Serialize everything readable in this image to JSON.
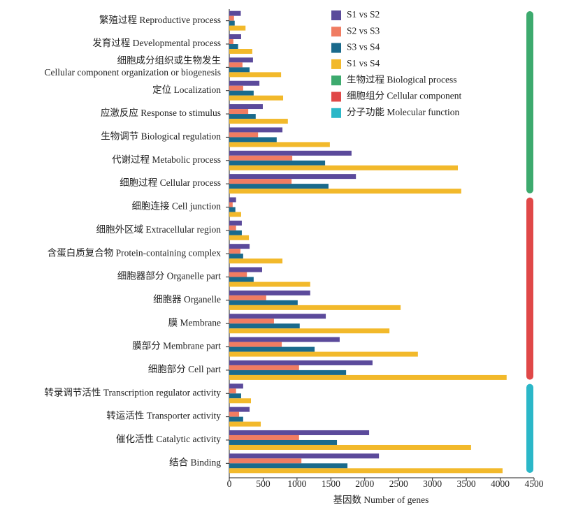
{
  "chart_data": {
    "type": "bar",
    "orientation": "horizontal",
    "xlabel": "基因数 Number of genes",
    "xlim": [
      0,
      4500
    ],
    "xticks": [
      0,
      500,
      1000,
      1500,
      2000,
      2500,
      3000,
      3500,
      4000,
      4500
    ],
    "groups": [
      {
        "name": "生物过程 Biological process",
        "color": "#3daa6e",
        "categories": [
          "繁殖过程 Reproductive process",
          "发育过程 Developmental process",
          "细胞成分组织或生物发生\nCellular component organization or biogenesis",
          "定位 Localization",
          "应激反应 Response to stimulus",
          "生物调节 Biological regulation",
          "代谢过程 Metabolic process",
          "细胞过程 Cellular process"
        ]
      },
      {
        "name": "细胞组分 Cellular component",
        "color": "#e04848",
        "categories": [
          "细胞连接 Cell junction",
          "细胞外区域 Extracellular region",
          "含蛋白质复合物 Protein-containing complex",
          "细胞器部分 Organelle part",
          "细胞器 Organelle",
          "膜 Membrane",
          "膜部分 Membrane part",
          "细胞部分 Cell part"
        ]
      },
      {
        "name": "分子功能 Molecular function",
        "color": "#2bb7c8",
        "categories": [
          "转录调节活性 Transcription regulator activity",
          "转运活性 Transporter activity",
          "催化活性 Catalytic activity",
          "结合 Binding"
        ]
      }
    ],
    "series": [
      {
        "name": "S1 vs S2",
        "color": "#5b4a9b",
        "values": [
          170,
          175,
          350,
          445,
          495,
          785,
          1805,
          1870,
          100,
          185,
          300,
          485,
          1195,
          1425,
          1630,
          2115,
          205,
          300,
          2065,
          2210
        ]
      },
      {
        "name": "S2 vs S3",
        "color": "#f07c62",
        "values": [
          70,
          60,
          195,
          205,
          280,
          425,
          930,
          920,
          50,
          100,
          165,
          260,
          545,
          660,
          775,
          1030,
          100,
          145,
          1030,
          1065
        ]
      },
      {
        "name": "S3 vs S4",
        "color": "#1a6a8c",
        "values": [
          80,
          130,
          300,
          360,
          390,
          700,
          1415,
          1465,
          90,
          185,
          205,
          360,
          1010,
          1040,
          1260,
          1725,
          175,
          205,
          1590,
          1745
        ]
      },
      {
        "name": "S1 vs S4",
        "color": "#f2b92b",
        "values": [
          240,
          340,
          765,
          795,
          865,
          1485,
          3375,
          3425,
          175,
          290,
          785,
          1195,
          2530,
          2365,
          2785,
          4095,
          320,
          465,
          3570,
          4035
        ]
      }
    ]
  }
}
